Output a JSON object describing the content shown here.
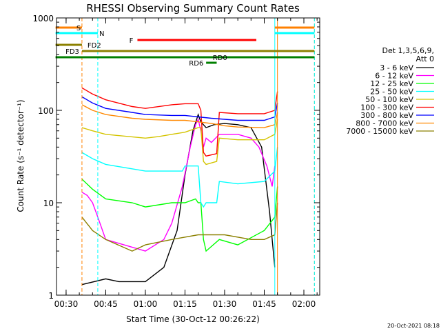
{
  "chart_data": {
    "type": "line",
    "title": "RHESSI Observing Summary Count Rates",
    "xlabel": "Start Time (30-Oct-12 00:26:22)",
    "ylabel": "Count Rate (s⁻¹ detector⁻¹)",
    "yscale": "log",
    "ylim": [
      1,
      1000
    ],
    "xlim": [
      "00:26:22",
      "02:06"
    ],
    "x_ticks": [
      "00:30",
      "00:45",
      "01:00",
      "01:15",
      "01:30",
      "01:45",
      "02:00"
    ],
    "y_ticks": [
      "1",
      "10",
      "100",
      "1000"
    ],
    "legend": {
      "position": "right",
      "header": [
        "Det 1,3,5,6,9,",
        "Att 0"
      ],
      "entries": [
        {
          "label": "3 - 6 keV",
          "color": "#000000"
        },
        {
          "label": "6 - 12 keV",
          "color": "#ff00ff"
        },
        {
          "label": "12 - 25 keV",
          "color": "#00ff00"
        },
        {
          "label": "25 - 50 keV",
          "color": "#00ffff"
        },
        {
          "label": "50 - 100 keV",
          "color": "#d4c400"
        },
        {
          "label": "100 - 300 keV",
          "color": "#ff0000"
        },
        {
          "label": "300 - 800 keV",
          "color": "#0000ff"
        },
        {
          "label": "800 - 7000 keV",
          "color": "#ff8800"
        },
        {
          "label": "7000 - 15000 keV",
          "color": "#8b8000"
        }
      ]
    },
    "flags": [
      {
        "label": "S",
        "color": "#ff8000",
        "segments": [
          [
            "00:26",
            "00:36"
          ],
          [
            "01:49",
            "02:04"
          ]
        ]
      },
      {
        "label": "N",
        "color": "#00ffff",
        "segments": [
          [
            "00:26",
            "00:42"
          ],
          [
            "01:49",
            "02:04"
          ]
        ]
      },
      {
        "label": "F",
        "color": "#ff0000",
        "segments": [
          [
            "00:57",
            "01:42"
          ]
        ]
      },
      {
        "label": "FD2",
        "color": "#8b8000",
        "segments": [
          [
            "00:26",
            "00:36"
          ]
        ]
      },
      {
        "label": "FD3",
        "color": "#8b8000",
        "segments": [
          [
            "00:36",
            "02:04"
          ]
        ]
      },
      {
        "label": "RD0",
        "color": "#008000",
        "segments": [
          [
            "00:26",
            "02:04"
          ]
        ]
      },
      {
        "label": "RD6",
        "color": "#008000",
        "segments": [
          [
            "01:23",
            "01:27"
          ]
        ]
      }
    ],
    "vertical_lines": [
      {
        "x": "00:36",
        "color": "#ff8000",
        "style": "dashed"
      },
      {
        "x": "00:42",
        "color": "#00ffff",
        "style": "dashed"
      },
      {
        "x": "01:49",
        "color": "#00ffff",
        "style": "solid"
      },
      {
        "x": "01:50",
        "color": "#ff8000",
        "style": "solid"
      },
      {
        "x": "02:04",
        "color": "#ff8000",
        "style": "dashed"
      },
      {
        "x": "02:04",
        "color": "#00ffff",
        "style": "dashed"
      }
    ],
    "series": [
      {
        "name": "3 - 6 keV",
        "color": "#000000",
        "x": [
          "00:36",
          "00:45",
          "00:50",
          "01:00",
          "01:07",
          "01:12",
          "01:15",
          "01:18",
          "01:20",
          "01:21",
          "01:23",
          "01:26",
          "01:30",
          "01:35",
          "01:40",
          "01:44",
          "01:47",
          "01:49"
        ],
        "y": [
          1.3,
          1.5,
          1.4,
          1.4,
          2,
          5,
          20,
          60,
          90,
          75,
          65,
          70,
          72,
          70,
          65,
          40,
          8,
          2
        ]
      },
      {
        "name": "6 - 12 keV",
        "color": "#ff00ff",
        "x": [
          "00:36",
          "00:38",
          "00:40",
          "00:42",
          "00:45",
          "01:00",
          "01:07",
          "01:10",
          "01:14",
          "01:17",
          "01:19",
          "01:20",
          "01:21",
          "01:22",
          "01:23",
          "01:25",
          "01:28",
          "01:35",
          "01:40",
          "01:43",
          "01:46",
          "01:48",
          "01:49"
        ],
        "y": [
          13,
          12,
          10,
          7,
          4,
          3,
          4,
          6,
          15,
          40,
          70,
          80,
          60,
          40,
          50,
          45,
          55,
          55,
          50,
          40,
          25,
          15,
          25
        ]
      },
      {
        "name": "12 - 25 keV",
        "color": "#00ff00",
        "x": [
          "00:36",
          "00:40",
          "00:45",
          "00:55",
          "01:00",
          "01:10",
          "01:15",
          "01:19",
          "01:20",
          "01:21",
          "01:22",
          "01:23",
          "01:28",
          "01:35",
          "01:45",
          "01:49",
          "01:50"
        ],
        "y": [
          18,
          14,
          11,
          10,
          9,
          10,
          10,
          11,
          10,
          10,
          4,
          3,
          4,
          3.5,
          5,
          7,
          15
        ]
      },
      {
        "name": "25 - 50 keV",
        "color": "#00ffff",
        "x": [
          "00:36",
          "00:40",
          "00:45",
          "01:00",
          "01:05",
          "01:10",
          "01:14",
          "01:15",
          "01:19",
          "01:20",
          "01:21",
          "01:22",
          "01:23",
          "01:27",
          "01:28",
          "01:35",
          "01:45",
          "01:49",
          "01:50"
        ],
        "y": [
          35,
          30,
          26,
          22,
          22,
          22,
          22,
          25,
          25,
          25,
          10,
          9,
          10,
          10,
          17,
          16,
          17,
          22,
          40
        ]
      },
      {
        "name": "50 - 100 keV",
        "color": "#d4c400",
        "x": [
          "00:36",
          "00:40",
          "00:45",
          "01:00",
          "01:05",
          "01:10",
          "01:15",
          "01:20",
          "01:21",
          "01:22",
          "01:23",
          "01:27",
          "01:28",
          "01:35",
          "01:45",
          "01:49",
          "01:50"
        ],
        "y": [
          65,
          60,
          55,
          50,
          52,
          55,
          58,
          65,
          65,
          28,
          26,
          28,
          50,
          48,
          48,
          55,
          80
        ]
      },
      {
        "name": "100 - 300 keV",
        "color": "#ff0000",
        "x": [
          "00:36",
          "00:40",
          "00:45",
          "00:55",
          "01:00",
          "01:10",
          "01:15",
          "01:20",
          "01:21",
          "01:22",
          "01:23",
          "01:27",
          "01:28",
          "01:35",
          "01:45",
          "01:49",
          "01:50"
        ],
        "y": [
          175,
          150,
          130,
          110,
          105,
          115,
          118,
          118,
          100,
          35,
          32,
          34,
          95,
          92,
          92,
          100,
          160
        ]
      },
      {
        "name": "300 - 800 keV",
        "color": "#0000ff",
        "x": [
          "00:36",
          "00:40",
          "00:45",
          "00:55",
          "01:00",
          "01:10",
          "01:15",
          "01:20",
          "01:25",
          "01:30",
          "01:35",
          "01:45",
          "01:49",
          "01:50"
        ],
        "y": [
          140,
          120,
          105,
          95,
          90,
          88,
          88,
          85,
          82,
          80,
          78,
          78,
          85,
          120
        ]
      },
      {
        "name": "800 - 7000 keV",
        "color": "#ff8800",
        "x": [
          "00:36",
          "00:40",
          "00:45",
          "00:55",
          "01:00",
          "01:10",
          "01:15",
          "01:20",
          "01:25",
          "01:30",
          "01:35",
          "01:45",
          "01:49",
          "01:50"
        ],
        "y": [
          115,
          100,
          90,
          82,
          80,
          78,
          78,
          75,
          72,
          68,
          66,
          65,
          70,
          95
        ]
      },
      {
        "name": "7000 - 15000 keV",
        "color": "#8b8000",
        "x": [
          "00:36",
          "00:40",
          "00:45",
          "00:55",
          "01:00",
          "01:10",
          "01:20",
          "01:30",
          "01:40",
          "01:45",
          "01:49",
          "01:50"
        ],
        "y": [
          7,
          5,
          4,
          3,
          3.5,
          4,
          4.5,
          4.5,
          4,
          4,
          4.5,
          10
        ]
      }
    ]
  },
  "timestamp": "20-Oct-2021 08:18"
}
